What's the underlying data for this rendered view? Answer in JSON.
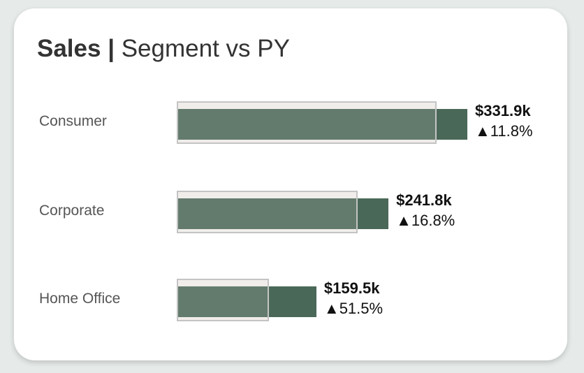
{
  "title": {
    "bold": "Sales |",
    "rest": " Segment vs PY"
  },
  "chart_data": {
    "type": "bullet",
    "title": "Sales | Segment vs PY",
    "categories": [
      "Consumer",
      "Corporate",
      "Home Office"
    ],
    "series": [
      {
        "name": "Sales",
        "values": [
          331.9,
          241.8,
          159.5
        ]
      },
      {
        "name": "PY",
        "values": [
          296.9,
          207.0,
          105.3
        ]
      }
    ],
    "value_labels": [
      "$331.9k",
      "$241.8k",
      "$159.5k"
    ],
    "change_labels": [
      "▲11.8%",
      "▲16.8%",
      "▲51.5%"
    ],
    "unit": "k USD",
    "colors": {
      "bar": "#4a6858",
      "py_fill": "#f0eeec",
      "py_border": "#c4c4c4"
    }
  }
}
